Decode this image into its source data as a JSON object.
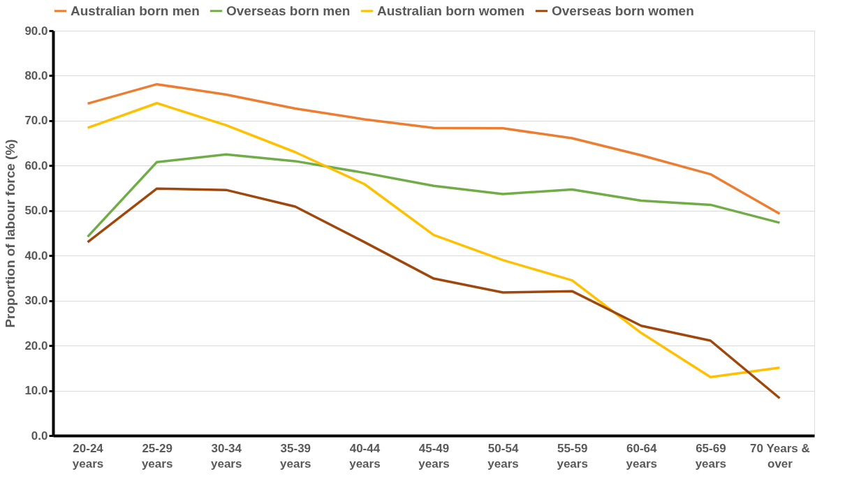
{
  "chart_data": {
    "type": "line",
    "ylabel": "Proportion of labour force (%)",
    "categories": [
      "20-24 years",
      "25-29 years",
      "30-34 years",
      "35-39 years",
      "40-44 years",
      "45-49 years",
      "50-54 years",
      "55-59 years",
      "60-64 years",
      "65-69 years",
      "70 Years & over"
    ],
    "series": [
      {
        "name": "Australian born men",
        "color": "#ed7d31",
        "values": [
          73.8,
          78.1,
          75.8,
          72.7,
          70.3,
          68.4,
          68.3,
          66.1,
          62.3,
          58.1,
          49.3
        ]
      },
      {
        "name": "Overseas born men",
        "color": "#70ad47",
        "values": [
          44.2,
          60.8,
          62.5,
          61.0,
          58.4,
          55.5,
          53.7,
          54.7,
          52.2,
          51.3,
          47.3
        ]
      },
      {
        "name": "Australian born women",
        "color": "#ffc000",
        "values": [
          68.4,
          73.9,
          69.0,
          63.0,
          55.9,
          44.6,
          39.0,
          34.5,
          22.8,
          13.0,
          15.1
        ]
      },
      {
        "name": "Overseas born women",
        "color": "#9e480e",
        "values": [
          43.0,
          54.9,
          54.6,
          50.9,
          43.0,
          34.9,
          31.8,
          32.1,
          24.4,
          21.1,
          8.3
        ]
      }
    ],
    "ylim": [
      0,
      90
    ],
    "yticks": [
      {
        "value": 0,
        "label": "0.0"
      },
      {
        "value": 10,
        "label": "10.0"
      },
      {
        "value": 20,
        "label": "20.0"
      },
      {
        "value": 30,
        "label": "30.0"
      },
      {
        "value": 40,
        "label": "40.0"
      },
      {
        "value": 50,
        "label": "50.0"
      },
      {
        "value": 60,
        "label": "60.0"
      },
      {
        "value": 70,
        "label": "70.0"
      },
      {
        "value": 80,
        "label": "80.0"
      },
      {
        "value": 90,
        "label": "90.0"
      }
    ],
    "grid": "y",
    "legend": "top",
    "marker": "none",
    "line_style": "solid"
  }
}
